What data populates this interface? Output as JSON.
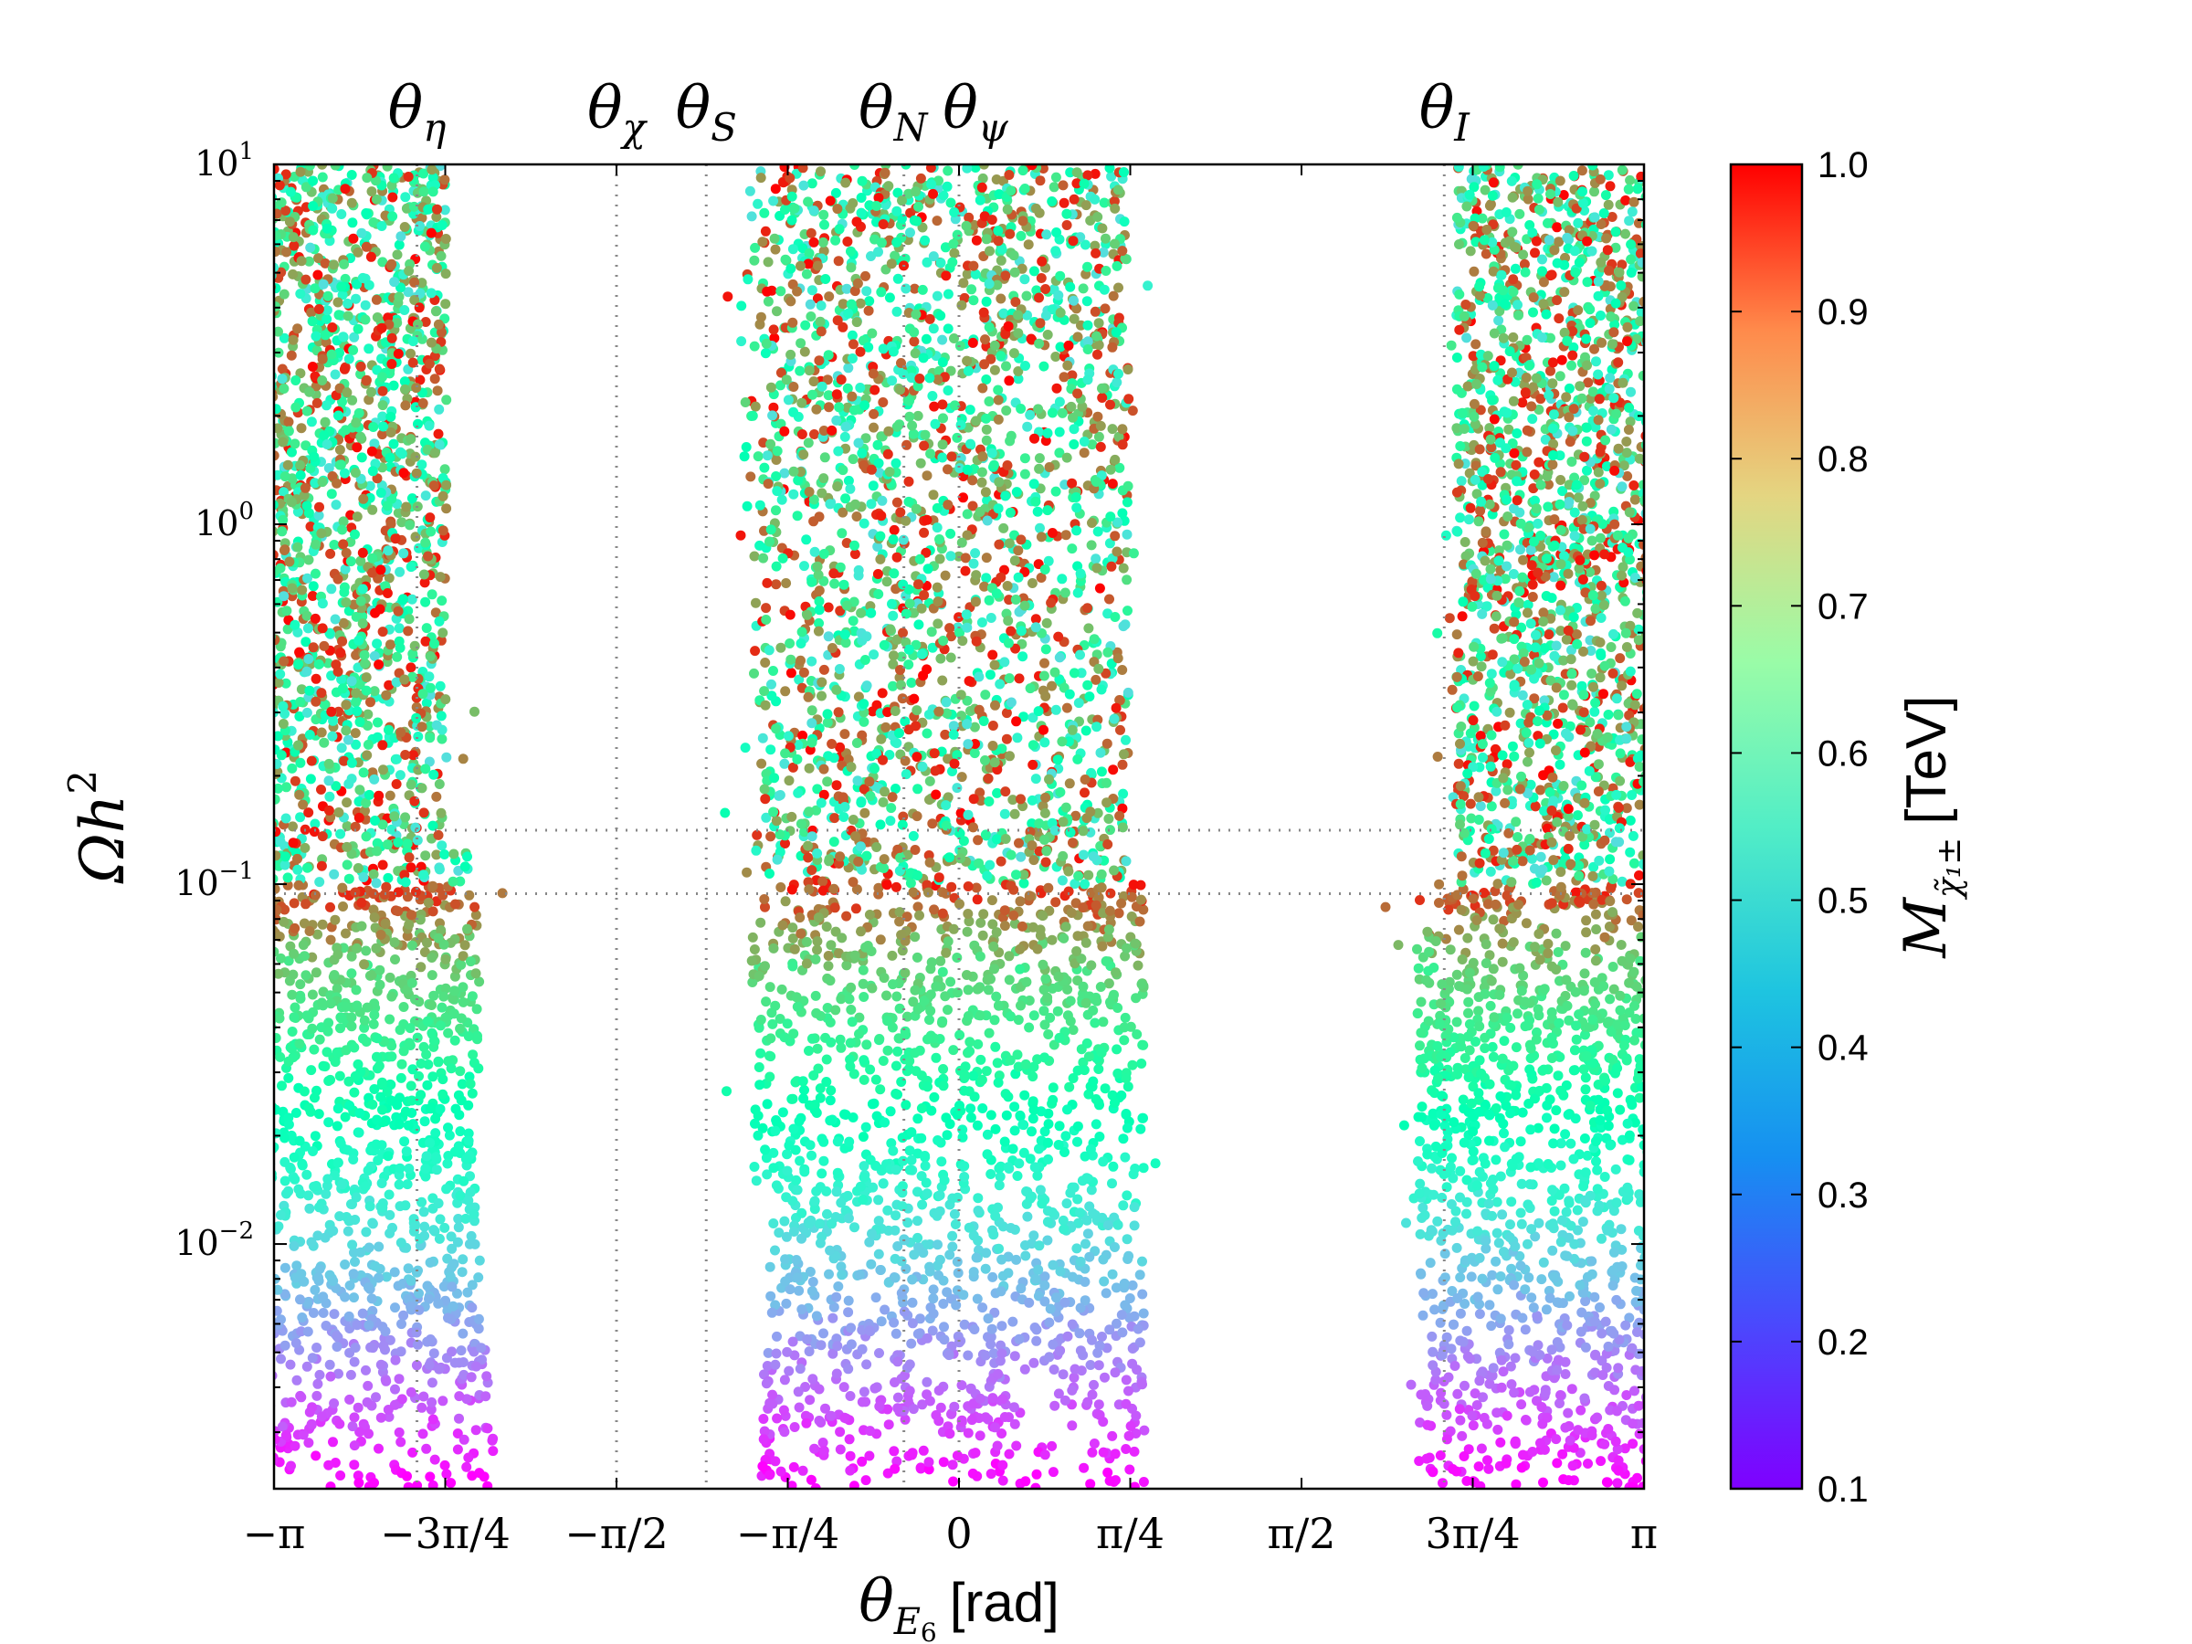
{
  "chart_data": {
    "type": "scatter",
    "title": "",
    "xlabel": "θ_E6 [rad]",
    "xlabel_main": "θ",
    "xlabel_sub": "E",
    "xlabel_subsub": "6",
    "xlabel_unit": "[rad]",
    "ylabel": "Ωh²",
    "ylabel_main": "Ωh",
    "ylabel_sup": "2",
    "xlim": [
      -3.14159,
      3.14159
    ],
    "ylim_log10": [
      -2.68,
      1
    ],
    "x_ticks": [
      {
        "value": -3.14159,
        "label": "−π"
      },
      {
        "value": -2.35619,
        "label": "−3π/4"
      },
      {
        "value": -1.5708,
        "label": "−π/2"
      },
      {
        "value": -0.7854,
        "label": "−π/4"
      },
      {
        "value": 0,
        "label": "0"
      },
      {
        "value": 0.7854,
        "label": "π/4"
      },
      {
        "value": 1.5708,
        "label": "π/2"
      },
      {
        "value": 2.35619,
        "label": "3π/4"
      },
      {
        "value": 3.14159,
        "label": "π"
      }
    ],
    "y_ticks": [
      {
        "log10": 1,
        "base": "10",
        "exp": "1"
      },
      {
        "log10": 0,
        "base": "10",
        "exp": "0"
      },
      {
        "log10": -1,
        "base": "10",
        "exp": "−1"
      },
      {
        "log10": -2,
        "base": "10",
        "exp": "−2"
      }
    ],
    "vertical_reference_lines": [
      {
        "value": -2.4859,
        "label": "θ",
        "sub": "η"
      },
      {
        "value": -1.5708,
        "label": "θ",
        "sub": "χ"
      },
      {
        "value": -1.1593,
        "label": "θ",
        "sub": "S"
      },
      {
        "value": -0.2527,
        "label": "θ",
        "sub": "N"
      },
      {
        "value": 0.0,
        "label": "θ",
        "sub": "ψ"
      },
      {
        "value": 2.2255,
        "label": "θ",
        "sub": "I"
      }
    ],
    "horizontal_reference_lines": [
      0.0941,
      0.1412
    ],
    "colorbar": {
      "label": "M_χ̃₁± [TeV]",
      "label_main": "M",
      "label_sub": "χ̃₁±",
      "label_unit": "[TeV]",
      "min": 0.1,
      "max": 1.0,
      "ticks": [
        "0.1",
        "0.2",
        "0.3",
        "0.4",
        "0.5",
        "0.6",
        "0.7",
        "0.8",
        "0.9",
        "1.0"
      ],
      "colormap": "rainbow"
    },
    "populated_regions": [
      {
        "x_range": [
          -3.14,
          -2.1
        ],
        "log10_omega_range": [
          -2.68,
          1.0
        ],
        "description": "left band"
      },
      {
        "x_range": [
          -1.05,
          0.9
        ],
        "log10_omega_range": [
          -2.68,
          1.0
        ],
        "description": "central band"
      },
      {
        "x_range": [
          2.07,
          3.14
        ],
        "log10_omega_range": [
          -2.68,
          1.0
        ],
        "description": "right band"
      }
    ],
    "color_trend": "M_chargino increases with Ωh²: ~0.1 TeV at 10^-2.7, ~0.45 TeV near 10^-1.5, ~0.9-1.0 TeV near 10^-1, scattered 0.4-1.0 TeV above"
  }
}
